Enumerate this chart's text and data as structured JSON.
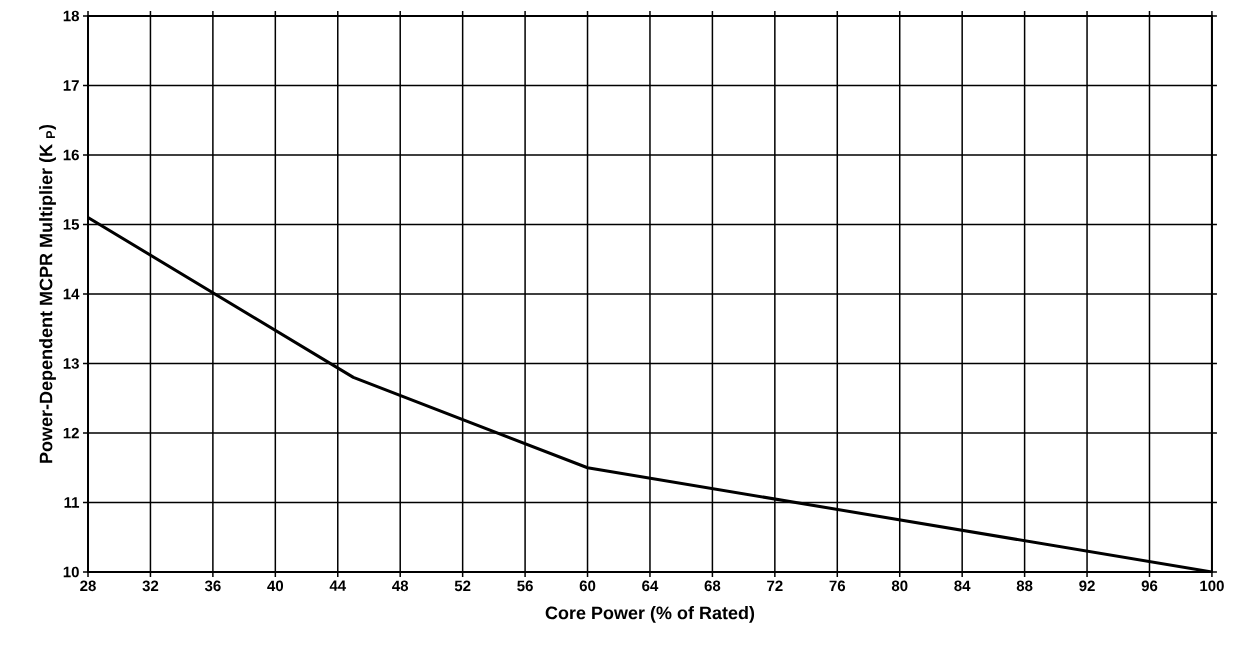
{
  "chart_data": {
    "type": "line",
    "xlabel": "Core Power (% of Rated)",
    "ylabel": "Power-Dependent MCPR Multiplier (K $_{P}$)",
    "x": [
      28,
      45,
      60,
      100
    ],
    "series": [
      {
        "color": "#000000",
        "values": [
          15.1,
          12.8,
          11.5,
          10.0
        ]
      }
    ],
    "xlim": [
      28,
      100
    ],
    "ylim": [
      10,
      18
    ],
    "xticks": [
      28,
      32,
      36,
      40,
      44,
      48,
      52,
      56,
      60,
      64,
      68,
      72,
      76,
      80,
      84,
      88,
      92,
      96,
      100
    ],
    "yticks": [
      10,
      11,
      12,
      13,
      14,
      15,
      16,
      17,
      18
    ],
    "grid": true,
    "marker": "none",
    "line_style": "solid"
  }
}
